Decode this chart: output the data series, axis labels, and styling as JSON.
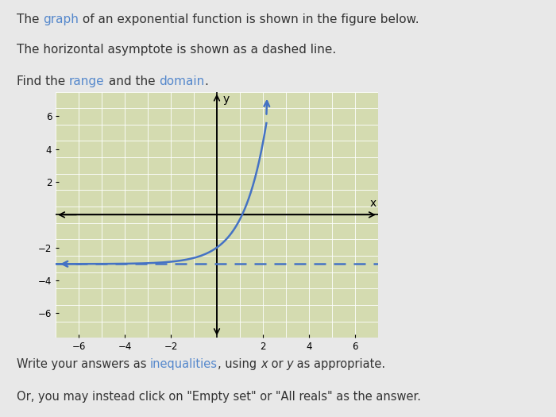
{
  "title_lines": [
    "The graph of an exponential function is shown in the figure below.",
    "The horizontal asymptote is shown as a dashed line.",
    "Find the range and the domain."
  ],
  "underlined_words": {
    "line0": [
      [
        "graph",
        4,
        9
      ]
    ],
    "line2": [
      [
        "range",
        9,
        14
      ],
      [
        "domain",
        23,
        29
      ]
    ]
  },
  "footer_lines": [
    "Write your answers as inequalities, using x or y as appropriate.",
    "Or, you may instead click on \"Empty set\" or \"All reals\" as the answer."
  ],
  "underlined_footer": {
    "line0": [
      [
        "inequalities",
        22,
        34
      ]
    ]
  },
  "asymptote_y": -3,
  "curve_color": "#4472c4",
  "asymptote_color": "#4472c4",
  "background_color": "#e8e8e8",
  "plot_bg_color": "#d4dbb0",
  "grid_color": "#ffffff",
  "xmin": -7,
  "xmax": 7,
  "ymin": -7.5,
  "ymax": 7.5,
  "xticks": [
    -6,
    -4,
    -2,
    2,
    4,
    6
  ],
  "yticks": [
    -6,
    -4,
    -2,
    2,
    4,
    6
  ],
  "axis_color": "#000000",
  "text_color": "#333333",
  "link_color": "#5588cc"
}
